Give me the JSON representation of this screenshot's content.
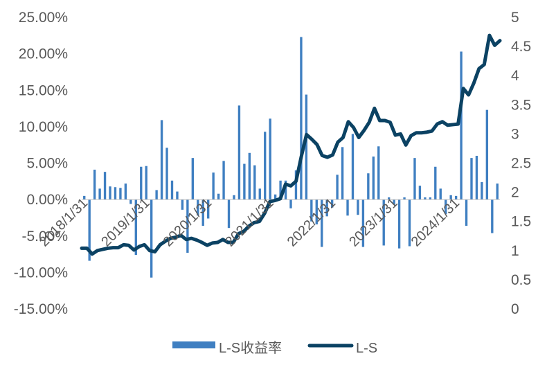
{
  "chart_data": {
    "type": "bar+line",
    "colors": {
      "bar": "#3f7fc1",
      "line": "#0b4263"
    },
    "y_left": {
      "ticks": [
        "25.00%",
        "20.00%",
        "15.00%",
        "10.00%",
        "5.00%",
        "0.00%",
        "-5.00%",
        "-10.00%",
        "-15.00%"
      ],
      "range": [
        -15,
        25
      ],
      "unit": "%"
    },
    "y_right": {
      "ticks": [
        "5",
        "4.5",
        "4",
        "3.5",
        "3",
        "2.5",
        "2",
        "1.5",
        "1",
        "0.5",
        "0"
      ],
      "range": [
        0,
        5
      ]
    },
    "x_ticks": [
      "2018/1/31",
      "2019/1/31",
      "2020/1/31",
      "2021/1/31",
      "2022/1/31",
      "2023/1/31",
      "2024/1/31"
    ],
    "legend": [
      {
        "label": "L-S收益率",
        "kind": "bar"
      },
      {
        "label": "L-S",
        "kind": "line"
      }
    ],
    "bars": [
      0.5,
      -8.4,
      4.1,
      1.5,
      3.8,
      1.8,
      1.7,
      1.6,
      2.2,
      -0.6,
      -7.6,
      4.5,
      4.6,
      -10.7,
      1.3,
      10.9,
      7.1,
      2.6,
      1.1,
      -1.4,
      -7.3,
      5.7,
      -2.2,
      -3.6,
      -2.6,
      3.7,
      0.8,
      5.3,
      -3.9,
      0.6,
      12.9,
      4.9,
      6.4,
      4.7,
      1.5,
      9.3,
      11.1,
      0.7,
      2.6,
      2.6,
      -1.2,
      4.0,
      22.3,
      14.4,
      -3.0,
      -3.4,
      -6.5,
      -2.3,
      -1.1,
      3.4,
      7.2,
      -2.2,
      9.0,
      -2.1,
      -6.5,
      3.6,
      5.9,
      7.3,
      -6.3,
      0.3,
      -0.7,
      -6.7,
      0.3,
      -6.4,
      5.7,
      1.9,
      0.3,
      0.3,
      4.5,
      1.5,
      -2.0,
      0.6,
      0.5,
      20.3,
      -3.6,
      5.7,
      6.0,
      2.4,
      12.3,
      -4.6,
      2.2
    ],
    "line": [
      1.04,
      1.04,
      0.94,
      1.0,
      1.02,
      1.04,
      1.05,
      1.05,
      1.1,
      1.09,
      1.01,
      1.07,
      1.1,
      1.0,
      0.98,
      1.1,
      1.16,
      1.21,
      1.23,
      1.26,
      1.19,
      1.21,
      1.18,
      1.14,
      1.09,
      1.13,
      1.14,
      1.19,
      1.14,
      1.14,
      1.29,
      1.33,
      1.42,
      1.48,
      1.5,
      1.64,
      1.84,
      1.86,
      1.89,
      2.14,
      2.11,
      2.19,
      2.61,
      2.99,
      2.91,
      2.82,
      2.63,
      2.6,
      2.64,
      2.86,
      2.94,
      3.21,
      3.11,
      2.94,
      3.06,
      3.2,
      3.44,
      3.23,
      3.23,
      3.2,
      2.98,
      3.0,
      2.81,
      2.97,
      3.02,
      3.02,
      3.03,
      3.05,
      3.17,
      3.21,
      3.15,
      3.16,
      3.17,
      3.78,
      3.67,
      3.87,
      4.12,
      4.19,
      4.69,
      4.52,
      4.6
    ]
  }
}
